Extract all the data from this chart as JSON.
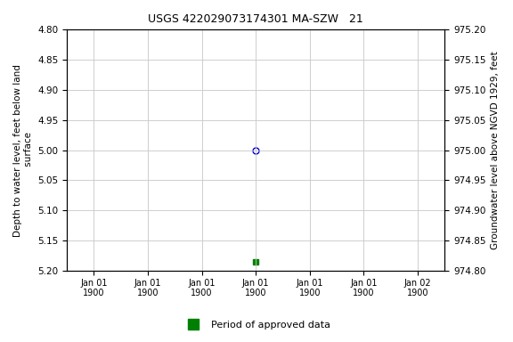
{
  "title": "USGS 422029073174301 MA-SZW   21",
  "title_fontsize": 9,
  "ylabel_left": "Depth to water level, feet below land\n surface",
  "ylabel_right": "Groundwater level above NGVD 1929, feet",
  "ylim_left": [
    5.2,
    4.8
  ],
  "ylim_right": [
    974.8,
    975.2
  ],
  "yticks_left": [
    4.8,
    4.85,
    4.9,
    4.95,
    5.0,
    5.05,
    5.1,
    5.15,
    5.2
  ],
  "yticks_right": [
    974.8,
    974.85,
    974.9,
    974.95,
    975.0,
    975.05,
    975.1,
    975.15,
    975.2
  ],
  "data_point_y": 5.0,
  "data_point_marker": "o",
  "data_point_color": "#0000cc",
  "data_point_facecolor": "none",
  "data_point_size": 5,
  "green_point_y": 5.185,
  "green_point_color": "#008000",
  "green_point_marker": "s",
  "green_point_size": 4,
  "legend_label": "Period of approved data",
  "legend_color": "#008000",
  "grid_color": "#c8c8c8",
  "background_color": "#ffffff",
  "font_family": "monospace",
  "xtick_labels": [
    "Jan 01\n1900",
    "Jan 01\n1900",
    "Jan 01\n1900",
    "Jan 01\n1900",
    "Jan 01\n1900",
    "Jan 01\n1900",
    "Jan 02\n1900"
  ],
  "num_xticks": 7,
  "data_x_pos": 3,
  "xlim": [
    -0.5,
    6.5
  ]
}
